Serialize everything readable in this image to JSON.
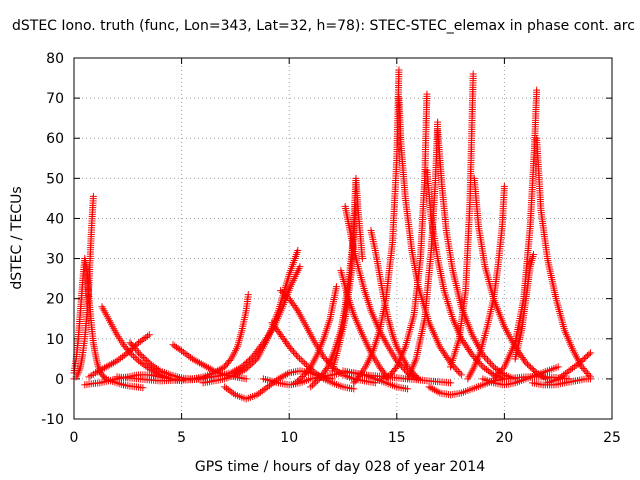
{
  "chart_data": {
    "type": "scatter",
    "title": "dSTEC Iono. truth (func, Lon=343, Lat=32, h=78): STEC-STEC_elemax in phase cont. arc",
    "xlabel": "GPS time / hours of day 028 of year 2014",
    "ylabel": "dSTEC  / TECUs",
    "xlim": [
      0,
      25
    ],
    "ylim": [
      -10,
      80
    ],
    "x_ticks": [
      "0",
      "5",
      "10",
      "15",
      "20",
      "25"
    ],
    "y_ticks": [
      "-10",
      "0",
      "10",
      "20",
      "30",
      "40",
      "50",
      "60",
      "70",
      "80"
    ],
    "grid": true,
    "marker": "plus",
    "color": "#ff0000",
    "series": [
      {
        "x": [
          0.0,
          0.1,
          0.2,
          0.3,
          0.4,
          0.5,
          0.6,
          0.7,
          0.8,
          0.9,
          1.0,
          1.1,
          1.2,
          1.3,
          1.5,
          1.7,
          2.0,
          2.3,
          2.6,
          2.9,
          3.2
        ],
        "values": [
          1.5,
          5,
          10,
          17,
          24,
          30,
          27,
          20,
          14,
          9,
          6,
          3.5,
          2,
          1,
          0,
          -0.5,
          -1,
          -1.5,
          -1.8,
          -2,
          -2.2
        ]
      },
      {
        "x": [
          0.0,
          0.1,
          0.2,
          0.3,
          0.4,
          0.5,
          0.6,
          0.7,
          0.8,
          0.9
        ],
        "values": [
          0,
          0.5,
          1.5,
          3,
          6,
          10,
          16,
          24,
          36,
          45.5
        ]
      },
      {
        "x": [
          1.3,
          1.5,
          1.7,
          2.0,
          2.3,
          2.6,
          3.0,
          3.5,
          4.0,
          4.5,
          5.0
        ],
        "values": [
          18,
          16,
          14,
          11,
          8.5,
          6.5,
          4.5,
          2.5,
          1,
          0,
          -0.5
        ]
      },
      {
        "x": [
          0.5,
          0.8,
          1.2,
          1.6,
          2.0,
          2.5,
          3.0,
          3.5,
          4.0,
          4.5,
          5.0,
          5.5,
          6.0
        ],
        "values": [
          -1.5,
          -1.2,
          -1,
          -0.5,
          0,
          0.5,
          1,
          1,
          0.5,
          0,
          -0.3,
          -0.2,
          0
        ]
      },
      {
        "x": [
          0.7,
          1.0,
          1.5,
          2.0,
          2.5,
          3.0,
          3.5
        ],
        "values": [
          0.5,
          1.5,
          3,
          4.5,
          6.5,
          9,
          11
        ]
      },
      {
        "x": [
          2.6,
          2.8,
          3.0,
          3.3,
          3.6,
          4.0,
          4.5,
          5.0,
          5.5,
          6.0,
          6.5
        ],
        "values": [
          9,
          8,
          6.5,
          5,
          3.5,
          2,
          1,
          0.2,
          0,
          0.2,
          0.6
        ]
      },
      {
        "x": [
          4.6,
          5.0,
          5.5,
          6.0,
          6.5,
          7.0,
          7.5,
          8.0
        ],
        "values": [
          8.5,
          7,
          5,
          3.5,
          2,
          1,
          0.5,
          0
        ]
      },
      {
        "x": [
          2.0,
          3.0,
          4.0,
          5.0,
          6.0,
          6.8,
          7.3,
          7.8,
          8.3,
          8.8,
          9.3,
          9.7,
          10.1,
          10.5
        ],
        "values": [
          0.5,
          0,
          -0.5,
          -0.3,
          0.2,
          0.8,
          1.5,
          3,
          5.5,
          9,
          13,
          18,
          23.5,
          28
        ]
      },
      {
        "x": [
          6.0,
          6.5,
          7.0,
          7.5,
          8.0,
          8.5,
          9.0,
          9.5,
          10.0,
          10.4
        ],
        "values": [
          -1,
          -0.5,
          0,
          1,
          2.5,
          5,
          10,
          17,
          26,
          32
        ]
      },
      {
        "x": [
          5.5,
          6.0,
          6.5,
          7.0,
          7.3,
          7.6,
          7.8,
          8.0,
          8.1
        ],
        "values": [
          0,
          0.5,
          1.5,
          3,
          5,
          8,
          12,
          17,
          21
        ]
      },
      {
        "x": [
          7.0,
          7.5,
          8.0,
          8.5,
          9.0,
          9.5,
          10.0,
          10.5,
          11.0,
          11.5,
          12.0
        ],
        "values": [
          -2,
          -4,
          -5,
          -4,
          -2,
          0,
          1.5,
          2,
          1.5,
          0.5,
          0
        ]
      },
      {
        "x": [
          9.2,
          9.6,
          10.0,
          10.4,
          10.8,
          11.2,
          11.6,
          12.0,
          12.5,
          13.0
        ],
        "values": [
          14,
          11,
          8,
          5.5,
          3.5,
          1.5,
          0,
          -1,
          -2,
          -2.5
        ]
      },
      {
        "x": [
          9.6,
          10.0,
          10.4,
          10.8,
          11.2,
          11.6,
          12.0,
          12.5,
          13.0,
          13.5,
          14.0
        ],
        "values": [
          22,
          20,
          17,
          13,
          9,
          5.5,
          3,
          1,
          0,
          -0.5,
          -1
        ]
      },
      {
        "x": [
          8.8,
          9.5,
          10.0,
          10.5,
          11.0,
          11.5,
          12.0,
          12.5,
          13.0,
          13.5,
          14.0,
          14.5,
          15.0,
          15.5
        ],
        "values": [
          0,
          -1,
          -1.5,
          -1,
          0,
          0.5,
          1,
          1.5,
          1.5,
          1,
          0,
          -1,
          -2,
          -2.5
        ]
      },
      {
        "x": [
          10.3,
          10.7,
          11.0,
          11.3,
          11.6,
          11.9,
          12.2
        ],
        "values": [
          -1,
          1,
          3,
          6,
          10,
          15,
          23
        ]
      },
      {
        "x": [
          11.0,
          11.4,
          11.8,
          12.1,
          12.4,
          12.6,
          12.8,
          13.0,
          13.1
        ],
        "values": [
          -2,
          0,
          3,
          7,
          12,
          18,
          26,
          36,
          43
        ]
      },
      {
        "x": [
          12.0,
          12.3,
          12.6,
          12.9,
          13.0,
          13.1,
          13.2,
          13.4
        ],
        "values": [
          2,
          8,
          15,
          27,
          38,
          50,
          42,
          30
        ]
      },
      {
        "x": [
          12.6,
          12.9,
          13.2,
          13.5,
          13.8,
          14.2,
          14.6,
          15.0,
          15.5,
          16.0
        ],
        "values": [
          43,
          35,
          28,
          22,
          17,
          12,
          8,
          4.5,
          1.5,
          0
        ]
      },
      {
        "x": [
          12.4,
          12.7,
          13.0,
          13.4,
          13.8,
          14.2,
          14.6
        ],
        "values": [
          27,
          21,
          16,
          11,
          6.5,
          3,
          0
        ]
      },
      {
        "x": [
          13.8,
          14.0,
          14.2,
          14.4,
          14.6,
          14.8,
          15.0,
          15.5,
          16.0
        ],
        "values": [
          37,
          32,
          26,
          20,
          15,
          11,
          8,
          3,
          0
        ]
      },
      {
        "x": [
          13.0,
          13.3,
          13.6,
          13.9,
          14.2,
          14.5,
          14.8,
          15.0,
          15.1
        ],
        "values": [
          -1,
          1,
          3.5,
          7,
          12,
          20,
          34,
          55,
          77
        ]
      },
      {
        "x": [
          15.1,
          15.2,
          15.4,
          15.7,
          16.0,
          16.5,
          17.0,
          17.5,
          18.0
        ],
        "values": [
          70,
          58,
          45,
          32,
          23,
          14,
          8,
          4,
          1
        ]
      },
      {
        "x": [
          14.3,
          14.7,
          15.0,
          15.4,
          15.8,
          16.1,
          16.3,
          16.4
        ],
        "values": [
          0,
          1,
          3,
          8,
          16,
          30,
          50,
          71
        ]
      },
      {
        "x": [
          16.4,
          16.6,
          16.9,
          17.2,
          17.6,
          18.0,
          18.5,
          19.0,
          19.5,
          20.0
        ],
        "values": [
          52,
          40,
          30,
          22,
          15,
          10,
          6,
          3,
          1,
          0
        ]
      },
      {
        "x": [
          15.5,
          15.9,
          16.3,
          16.6,
          16.8,
          16.9
        ],
        "values": [
          0,
          5,
          15,
          32,
          50,
          64
        ]
      },
      {
        "x": [
          16.9,
          17.1,
          17.3,
          17.6,
          18.0,
          18.5,
          19.0,
          19.5,
          20.0,
          20.5
        ],
        "values": [
          62,
          48,
          37,
          27,
          18,
          11,
          6,
          3,
          1,
          0
        ]
      },
      {
        "x": [
          16.5,
          17.0,
          17.5,
          18.0,
          18.5,
          19.0,
          19.5,
          20.0,
          21.0,
          22.0,
          23.0
        ],
        "values": [
          -2,
          -3.5,
          -4,
          -3.5,
          -2.5,
          -1.5,
          -0.5,
          0,
          0.5,
          0.5,
          0
        ]
      },
      {
        "x": [
          17.5,
          17.9,
          18.2,
          18.4,
          18.55
        ],
        "values": [
          3,
          10,
          22,
          44,
          76
        ]
      },
      {
        "x": [
          18.6,
          18.8,
          19.1,
          19.5,
          20.0,
          20.5,
          21.0,
          21.5,
          22.0
        ],
        "values": [
          50,
          38,
          28,
          20,
          13,
          8,
          4,
          1.5,
          0
        ]
      },
      {
        "x": [
          18.3,
          18.6,
          18.9,
          19.2,
          19.5,
          19.7,
          19.9,
          20.0
        ],
        "values": [
          0,
          3,
          7,
          13,
          20,
          28,
          38,
          48
        ]
      },
      {
        "x": [
          19.0,
          19.5,
          20.0,
          20.5,
          21.0,
          21.5,
          22.0,
          22.5
        ],
        "values": [
          0,
          -1,
          -1.5,
          -1,
          0,
          1,
          2,
          3
        ]
      },
      {
        "x": [
          20.5,
          20.8,
          21.0,
          21.2,
          21.35
        ],
        "values": [
          5,
          12,
          20,
          28,
          31
        ]
      },
      {
        "x": [
          19.5,
          20.0,
          20.5,
          20.9,
          21.2,
          21.4,
          21.5
        ],
        "values": [
          0,
          3,
          9,
          20,
          38,
          58,
          72
        ]
      },
      {
        "x": [
          21.5,
          21.7,
          22.0,
          22.4,
          22.8,
          23.2,
          23.6,
          24.0
        ],
        "values": [
          60,
          42,
          30,
          20,
          12,
          7,
          3,
          0.5
        ]
      },
      {
        "x": [
          21.3,
          21.8,
          22.3,
          22.8,
          23.3,
          23.8,
          24.0
        ],
        "values": [
          -1,
          -1.5,
          -1.5,
          -1,
          -0.5,
          0,
          0
        ]
      },
      {
        "x": [
          22.0,
          22.5,
          23.0,
          23.5,
          24.0
        ],
        "values": [
          -1,
          0,
          2,
          4,
          6.5
        ]
      },
      {
        "x": [
          12.5,
          13.5,
          14.5,
          15.5,
          16.5,
          17.5
        ],
        "values": [
          2,
          1,
          0.5,
          0,
          -0.5,
          -1
        ]
      }
    ]
  }
}
